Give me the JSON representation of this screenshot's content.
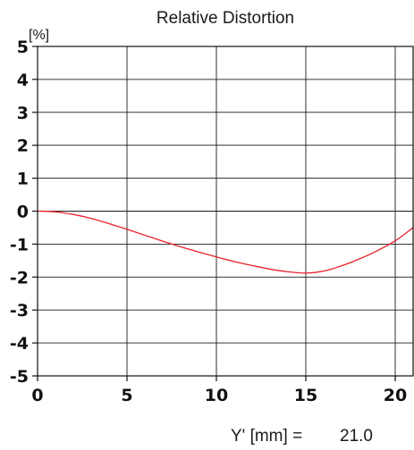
{
  "chart_data": {
    "type": "line",
    "title": "Relative Distortion",
    "ylabel": "[%]",
    "xlabel": "",
    "xlim": [
      0,
      21
    ],
    "ylim": [
      -5,
      5
    ],
    "x_ticks": [
      0,
      5,
      10,
      15,
      20
    ],
    "y_ticks": [
      5,
      4,
      3,
      2,
      1,
      0,
      -1,
      -2,
      -3,
      -4,
      -5
    ],
    "x_tick_labels": [
      "0",
      "5",
      "10",
      "15",
      "20"
    ],
    "y_tick_labels": [
      "5",
      "4",
      "3",
      "2",
      "1",
      "0",
      "-1",
      "-2",
      "-3",
      "-4",
      "-5"
    ],
    "grid": true,
    "series": [
      {
        "color": "#e8202a",
        "x": [
          0,
          1,
          2,
          3,
          4,
          5,
          6,
          7,
          8,
          9,
          10,
          11,
          12,
          13,
          14,
          15,
          16,
          17,
          18,
          19,
          20,
          21
        ],
        "y": [
          0,
          -0.02,
          -0.1,
          -0.22,
          -0.38,
          -0.55,
          -0.73,
          -0.91,
          -1.08,
          -1.24,
          -1.39,
          -1.53,
          -1.65,
          -1.76,
          -1.84,
          -1.88,
          -1.82,
          -1.66,
          -1.45,
          -1.2,
          -0.9,
          -0.5
        ]
      }
    ],
    "footer": {
      "label": "Y' [mm] =",
      "value": "21.0"
    }
  }
}
